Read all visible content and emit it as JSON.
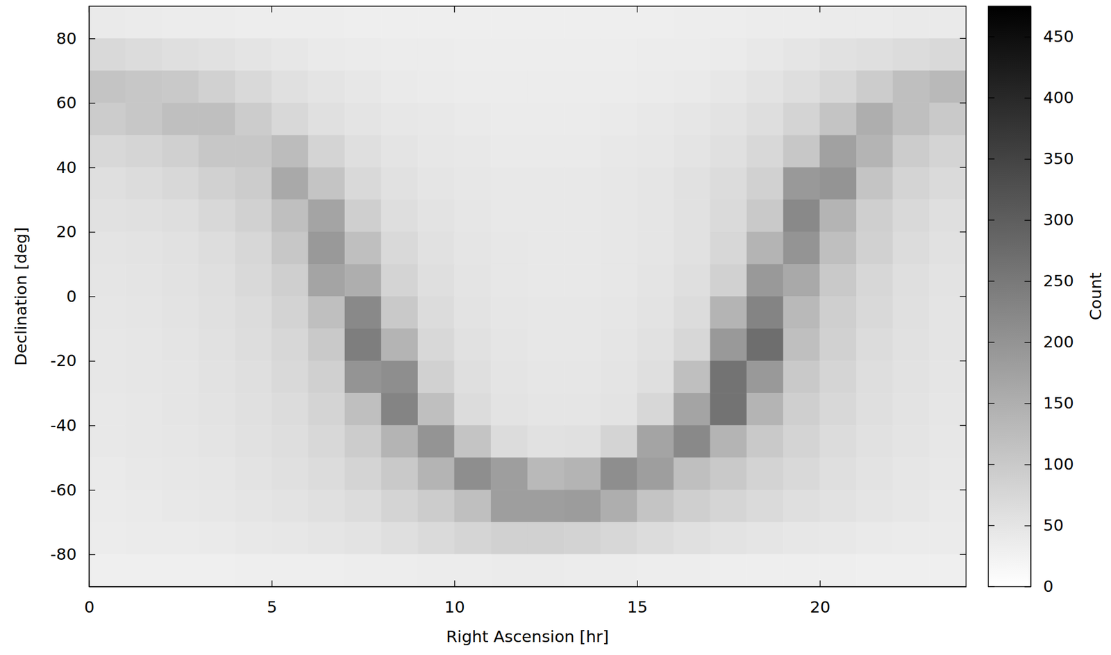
{
  "chart_data": {
    "type": "heatmap",
    "x_label": "Right Ascension [hr]",
    "y_label": "Declination [deg]",
    "xlim": [
      0,
      24
    ],
    "ylim": [
      -90,
      90
    ],
    "xticks": [
      0,
      5,
      10,
      15,
      20
    ],
    "yticks": [
      -80,
      -60,
      -40,
      -20,
      0,
      20,
      40,
      60,
      80
    ],
    "x_bins": [
      0,
      1,
      2,
      3,
      4,
      5,
      6,
      7,
      8,
      9,
      10,
      11,
      12,
      13,
      14,
      15,
      16,
      17,
      18,
      19,
      20,
      21,
      22,
      23,
      24
    ],
    "y_bins": [
      90,
      80,
      70,
      60,
      50,
      40,
      30,
      20,
      10,
      0,
      -10,
      -20,
      -30,
      -40,
      -50,
      -60,
      -70,
      -80,
      -90
    ],
    "values": [
      [
        40,
        38,
        36,
        35,
        34,
        33,
        33,
        32,
        32,
        32,
        32,
        32,
        32,
        32,
        32,
        32,
        33,
        34,
        35,
        36,
        37,
        38,
        40,
        40
      ],
      [
        70,
        65,
        60,
        55,
        50,
        45,
        40,
        38,
        36,
        35,
        34,
        34,
        34,
        34,
        34,
        35,
        36,
        38,
        42,
        48,
        55,
        60,
        65,
        70
      ],
      [
        110,
        105,
        100,
        85,
        70,
        58,
        50,
        45,
        40,
        38,
        36,
        35,
        35,
        35,
        36,
        38,
        40,
        45,
        52,
        62,
        75,
        95,
        120,
        130
      ],
      [
        95,
        105,
        120,
        120,
        95,
        72,
        58,
        50,
        45,
        42,
        40,
        38,
        38,
        38,
        40,
        42,
        46,
        52,
        62,
        80,
        110,
        150,
        120,
        100
      ],
      [
        72,
        78,
        88,
        105,
        105,
        125,
        80,
        60,
        50,
        45,
        42,
        40,
        40,
        40,
        42,
        45,
        50,
        58,
        72,
        105,
        175,
        140,
        95,
        80
      ],
      [
        60,
        65,
        72,
        85,
        95,
        160,
        110,
        70,
        55,
        48,
        44,
        42,
        42,
        42,
        44,
        48,
        55,
        66,
        85,
        190,
        200,
        110,
        80,
        68
      ],
      [
        55,
        58,
        62,
        72,
        85,
        120,
        170,
        90,
        62,
        52,
        46,
        42,
        42,
        42,
        44,
        48,
        56,
        68,
        100,
        220,
        140,
        90,
        70,
        60
      ],
      [
        50,
        52,
        56,
        64,
        75,
        105,
        190,
        120,
        70,
        56,
        48,
        44,
        42,
        42,
        44,
        48,
        56,
        75,
        140,
        200,
        120,
        85,
        65,
        55
      ],
      [
        48,
        50,
        54,
        60,
        70,
        90,
        170,
        150,
        80,
        60,
        50,
        45,
        42,
        42,
        45,
        50,
        60,
        85,
        190,
        160,
        100,
        75,
        60,
        52
      ],
      [
        46,
        48,
        52,
        58,
        66,
        82,
        120,
        220,
        100,
        65,
        52,
        46,
        44,
        44,
        46,
        52,
        65,
        140,
        230,
        130,
        90,
        70,
        58,
        50
      ],
      [
        45,
        47,
        50,
        56,
        63,
        75,
        100,
        240,
        140,
        72,
        56,
        48,
        45,
        45,
        48,
        55,
        75,
        190,
        270,
        120,
        85,
        66,
        56,
        50
      ],
      [
        44,
        46,
        49,
        54,
        60,
        70,
        88,
        200,
        210,
        85,
        60,
        50,
        46,
        46,
        50,
        60,
        120,
        260,
        190,
        100,
        78,
        62,
        54,
        48
      ],
      [
        43,
        45,
        48,
        52,
        57,
        66,
        80,
        120,
        230,
        120,
        65,
        52,
        48,
        48,
        52,
        75,
        170,
        260,
        140,
        90,
        72,
        60,
        52,
        46
      ],
      [
        42,
        44,
        46,
        50,
        55,
        62,
        72,
        95,
        140,
        200,
        110,
        65,
        55,
        58,
        80,
        170,
        220,
        140,
        100,
        80,
        66,
        56,
        50,
        45
      ],
      [
        40,
        42,
        44,
        47,
        52,
        58,
        66,
        80,
        100,
        140,
        210,
        180,
        130,
        140,
        210,
        180,
        120,
        100,
        82,
        70,
        60,
        52,
        47,
        43
      ],
      [
        38,
        40,
        42,
        44,
        48,
        52,
        58,
        66,
        80,
        95,
        120,
        180,
        180,
        185,
        150,
        110,
        90,
        78,
        68,
        60,
        54,
        48,
        44,
        40
      ],
      [
        36,
        37,
        38,
        40,
        42,
        44,
        48,
        52,
        60,
        68,
        78,
        85,
        85,
        82,
        75,
        65,
        58,
        52,
        48,
        45,
        42,
        40,
        38,
        37
      ],
      [
        30,
        30,
        30,
        30,
        31,
        31,
        32,
        33,
        34,
        35,
        36,
        37,
        37,
        36,
        35,
        34,
        33,
        32,
        32,
        31,
        31,
        30,
        30,
        30
      ]
    ],
    "colorbar_label": "Count",
    "colorbar_range": [
      0,
      475
    ],
    "colorbar_ticks": [
      0,
      50,
      100,
      150,
      200,
      250,
      300,
      350,
      400,
      450
    ]
  }
}
